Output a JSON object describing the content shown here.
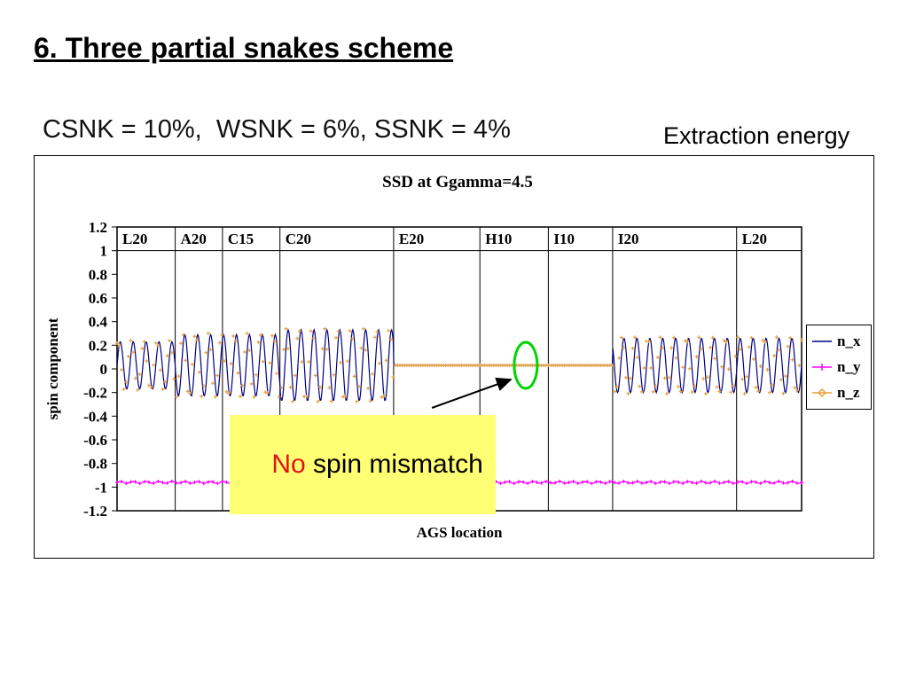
{
  "slide": {
    "title": "6. Three partial snakes scheme",
    "params_line": "CSNK = 10%,  WSNK = 6%, SSNK = 4%",
    "energy_label": "Extraction energy"
  },
  "chart_data": {
    "type": "line",
    "title": "SSD at Ggamma=4.5",
    "xlabel": "AGS location",
    "ylabel": "spin component",
    "ylim": [
      -1.2,
      1.2
    ],
    "yticks": [
      "1.2",
      "1",
      "0.8",
      "0.6",
      "0.4",
      "0.2",
      "0",
      "-0.2",
      "-0.4",
      "-0.6",
      "-0.8",
      "-1",
      "-1.2"
    ],
    "header_line_value": 1.0,
    "grid": "vertical-section-lines",
    "legend_position": "right",
    "sections": {
      "labels": [
        "L20",
        "A20",
        "C15",
        "C20",
        "E20",
        "H10",
        "I10",
        "I20",
        "L20"
      ],
      "boundaries": [
        0,
        0.085,
        0.154,
        0.238,
        0.404,
        0.53,
        0.63,
        0.724,
        0.905,
        1
      ]
    },
    "series": [
      {
        "name": "n_x",
        "color": "#000080",
        "draw_line": true,
        "marker": false,
        "marker_count": 0,
        "base": 0.03,
        "cycles": 53,
        "phase": 0,
        "envelope": [
          {
            "from": 0,
            "to": 0.085,
            "amp": 0.2
          },
          {
            "from": 0.085,
            "to": 0.238,
            "amp": 0.26
          },
          {
            "from": 0.238,
            "to": 0.404,
            "amp": 0.3
          },
          {
            "from": 0.404,
            "to": 0.724,
            "amp": 0
          },
          {
            "from": 0.724,
            "to": 1,
            "amp": 0.23
          }
        ]
      },
      {
        "name": "n_y",
        "color": "#FF00FF",
        "draw_line": true,
        "marker": true,
        "marker_count": 160,
        "base": -0.96,
        "cycles": 53,
        "phase": 0,
        "envelope": [
          {
            "from": 0,
            "to": 1,
            "amp": 0.008
          }
        ]
      },
      {
        "name": "n_z",
        "color": "#E8A13C",
        "draw_line": false,
        "marker": true,
        "marker_count": 340,
        "base": 0.03,
        "cycles": 53,
        "phase": 1.1,
        "envelope": [
          {
            "from": 0,
            "to": 0.085,
            "amp": 0.21
          },
          {
            "from": 0.085,
            "to": 0.238,
            "amp": 0.27
          },
          {
            "from": 0.238,
            "to": 0.404,
            "amp": 0.31
          },
          {
            "from": 0.404,
            "to": 0.724,
            "amp": 0
          },
          {
            "from": 0.724,
            "to": 1,
            "amp": 0.24
          }
        ]
      }
    ],
    "annotations": {
      "ellipse": {
        "x_frac": 0.597,
        "y_value": 0.03,
        "color": "#00D400"
      },
      "arrow": {
        "from_x_frac": 0.46,
        "from_y_value": -0.33,
        "to_x_frac": 0.575,
        "to_y_value": -0.09
      },
      "callout": {
        "prefix": "No",
        "text": " spin mismatch",
        "bg": "#FFFF73",
        "prefix_color": "#E51111"
      }
    }
  }
}
